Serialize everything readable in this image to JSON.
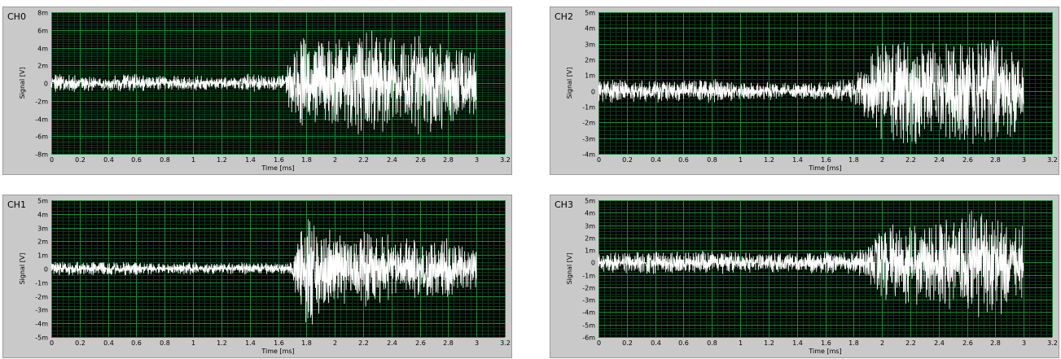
{
  "colors": {
    "panel_bg": "#c9c9c9",
    "plot_bg": "#000000",
    "major_grid": "#1e8a3a",
    "minor_grid": "#0c3b17",
    "trace": "#ffffff"
  },
  "chart_data": [
    {
      "type": "line",
      "title": "CH0",
      "xlabel": "Time [ms]",
      "ylabel": "Signal [V]",
      "xlim": [
        0,
        3.2
      ],
      "ylim": [
        -8,
        8
      ],
      "y_unit": "m",
      "x_ticks": [
        "0",
        "0.2",
        "0.4",
        "0.6",
        "0.8",
        "1",
        "1.2",
        "1.4",
        "1.6",
        "1.8",
        "2",
        "2.2",
        "2.4",
        "2.6",
        "2.8",
        "3",
        "3.2"
      ],
      "y_ticks": [
        "8m",
        "6m",
        "4m",
        "2m",
        "0",
        "-2m",
        "-4m",
        "-6m",
        "-8m"
      ],
      "grid": true,
      "series": [
        {
          "x": [
            0,
            0.2,
            0.4,
            0.6,
            0.8,
            1.0,
            1.2,
            1.4,
            1.6,
            1.65,
            1.7,
            1.8,
            2.0,
            2.2,
            2.4,
            2.6,
            2.8,
            3.0
          ],
          "envelope_amplitude": [
            1.1,
            1.0,
            0.9,
            1.1,
            0.8,
            0.9,
            0.7,
            1.1,
            0.9,
            1.0,
            4.5,
            5.5,
            5.0,
            6.2,
            5.5,
            6.0,
            5.0,
            3.5
          ]
        }
      ]
    },
    {
      "type": "line",
      "title": "CH1",
      "xlabel": "Time [ms]",
      "ylabel": "Signal [V]",
      "xlim": [
        0,
        3.2
      ],
      "ylim": [
        -5,
        5
      ],
      "y_unit": "m",
      "x_ticks": [
        "0",
        "0.2",
        "0.4",
        "0.6",
        "0.8",
        "1",
        "1.2",
        "1.4",
        "1.6",
        "1.8",
        "2",
        "2.2",
        "2.4",
        "2.6",
        "2.8",
        "3",
        "3.2"
      ],
      "y_ticks": [
        "5m",
        "4m",
        "3m",
        "2m",
        "1m",
        "0",
        "-1m",
        "-2m",
        "-3m",
        "-4m",
        "-5m"
      ],
      "grid": true,
      "series": [
        {
          "x": [
            0,
            0.2,
            0.4,
            0.6,
            0.8,
            1.0,
            1.2,
            1.4,
            1.6,
            1.7,
            1.75,
            1.8,
            2.0,
            2.2,
            2.4,
            2.6,
            2.8,
            3.0
          ],
          "envelope_amplitude": [
            0.6,
            0.5,
            0.5,
            0.5,
            0.4,
            0.5,
            0.4,
            0.5,
            0.4,
            0.5,
            3.5,
            4.5,
            2.5,
            2.8,
            2.5,
            2.2,
            2.3,
            1.8
          ]
        }
      ]
    },
    {
      "type": "line",
      "title": "CH2",
      "xlabel": "Time [ms]",
      "ylabel": "Signal [V]",
      "xlim": [
        0,
        3.2
      ],
      "ylim": [
        -4,
        5
      ],
      "y_unit": "m",
      "x_ticks": [
        "0",
        "0.2",
        "0.4",
        "0.6",
        "0.8",
        "1",
        "1.2",
        "1.4",
        "1.6",
        "1.8",
        "2",
        "2.2",
        "2.4",
        "2.6",
        "2.8",
        "3",
        "3.2"
      ],
      "y_ticks": [
        "5m",
        "4m",
        "3m",
        "2m",
        "1m",
        "0",
        "-1m",
        "-2m",
        "-3m",
        "-4m"
      ],
      "grid": true,
      "series": [
        {
          "x": [
            0,
            0.2,
            0.4,
            0.6,
            0.8,
            1.0,
            1.2,
            1.4,
            1.6,
            1.8,
            1.9,
            2.0,
            2.2,
            2.4,
            2.6,
            2.8,
            3.0
          ],
          "envelope_amplitude": [
            0.8,
            0.7,
            0.8,
            0.7,
            0.8,
            0.6,
            0.6,
            0.5,
            0.6,
            0.8,
            2.0,
            3.5,
            3.5,
            3.0,
            3.5,
            3.5,
            2.5
          ]
        }
      ]
    },
    {
      "type": "line",
      "title": "CH3",
      "xlabel": "Time [ms]",
      "ylabel": "Signal [V]",
      "xlim": [
        0,
        3.2
      ],
      "ylim": [
        -6,
        5
      ],
      "y_unit": "m",
      "x_ticks": [
        "0",
        "0.2",
        "0.4",
        "0.6",
        "0.8",
        "1",
        "1.2",
        "1.4",
        "1.6",
        "1.8",
        "2",
        "2.2",
        "2.4",
        "2.6",
        "2.8",
        "3",
        "3.2"
      ],
      "y_ticks": [
        "5m",
        "4m",
        "3m",
        "2m",
        "1m",
        "0",
        "-1m",
        "-2m",
        "-3m",
        "-4m",
        "-5m",
        "-6m"
      ],
      "grid": true,
      "series": [
        {
          "x": [
            0,
            0.2,
            0.4,
            0.6,
            0.8,
            1.0,
            1.2,
            1.4,
            1.6,
            1.8,
            1.9,
            2.0,
            2.2,
            2.4,
            2.6,
            2.8,
            3.0
          ],
          "envelope_amplitude": [
            0.8,
            0.9,
            1.0,
            0.9,
            1.0,
            0.9,
            0.8,
            0.9,
            1.0,
            0.9,
            1.5,
            3.0,
            3.5,
            3.5,
            4.5,
            4.5,
            3.0
          ]
        }
      ]
    }
  ]
}
